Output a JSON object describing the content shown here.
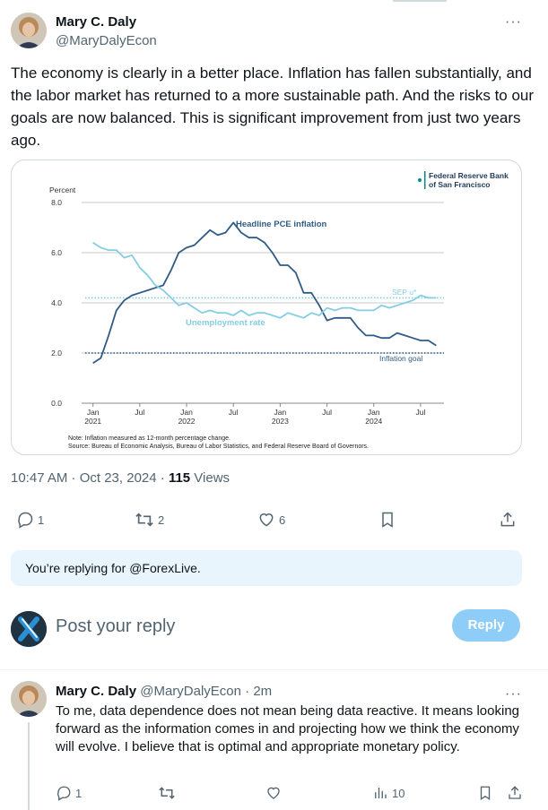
{
  "main_tweet": {
    "author_name": "Mary C. Daly",
    "author_handle": "@MaryDalyEcon",
    "text": "The economy is clearly in a better place. Inflation has fallen substantially, and the labor market has returned to a more sustainable path. And the risks to our goals are now balanced. This is significant improvement from just two years ago.",
    "time": "10:47 AM · Oct 23, 2024 · ",
    "views_count": "115",
    "views_label": " Views",
    "replies": "1",
    "reposts": "2",
    "likes": "6"
  },
  "chart_card": {
    "brand_line1": "Federal Reserve Bank",
    "brand_line2": "of San Francisco",
    "y_unit": "Percent",
    "note": "Note: Inflation measured as 12-month percentage change.",
    "source": "Source: Bureau of Economic Analysis, Bureau of Labor Statistics, and Federal Reserve Board of Governors."
  },
  "chart_data": {
    "type": "line",
    "ylim": [
      0,
      8
    ],
    "yticks": [
      "0.0",
      "2.0",
      "4.0",
      "6.0",
      "8.0"
    ],
    "xticks": [
      {
        "line1": "Jan",
        "line2": "2021",
        "t": 0
      },
      {
        "line1": "Jul",
        "line2": "",
        "t": 6
      },
      {
        "line1": "Jan",
        "line2": "2022",
        "t": 12
      },
      {
        "line1": "Jul",
        "line2": "",
        "t": 18
      },
      {
        "line1": "Jan",
        "line2": "2023",
        "t": 24
      },
      {
        "line1": "Jul",
        "line2": "",
        "t": 30
      },
      {
        "line1": "Jan",
        "line2": "2024",
        "t": 36
      },
      {
        "line1": "Jul",
        "line2": "",
        "t": 42
      }
    ],
    "xlim": [
      -1,
      45
    ],
    "series": [
      {
        "name": "Headline PCE inflation",
        "color": "#2f5c85",
        "values": [
          1.6,
          1.8,
          2.7,
          3.7,
          4.1,
          4.3,
          4.4,
          4.5,
          4.6,
          4.7,
          5.3,
          6.0,
          6.2,
          6.3,
          6.6,
          6.9,
          6.7,
          6.8,
          7.2,
          6.8,
          6.6,
          6.6,
          6.4,
          6.0,
          5.5,
          5.5,
          5.2,
          4.4,
          4.4,
          3.9,
          3.3,
          3.4,
          3.4,
          3.4,
          3.0,
          2.7,
          2.7,
          2.6,
          2.6,
          2.8,
          2.7,
          2.6,
          2.5,
          2.5,
          2.3
        ]
      },
      {
        "name": "Unemployment rate",
        "color": "#85cde3",
        "values": [
          6.4,
          6.2,
          6.1,
          6.1,
          5.8,
          5.9,
          5.4,
          5.1,
          4.7,
          4.5,
          4.2,
          3.9,
          4.0,
          3.8,
          3.6,
          3.7,
          3.6,
          3.6,
          3.5,
          3.7,
          3.5,
          3.6,
          3.6,
          3.5,
          3.4,
          3.6,
          3.5,
          3.4,
          3.6,
          3.5,
          3.8,
          3.7,
          3.8,
          3.8,
          3.7,
          3.7,
          3.7,
          3.9,
          3.8,
          3.9,
          4.0,
          4.1,
          4.3,
          4.2,
          4.2
        ]
      }
    ],
    "reference_lines": [
      {
        "name": "SEP u*",
        "value": 4.2,
        "color": "#85cde3"
      },
      {
        "name": "Inflation goal",
        "value": 2.0,
        "color": "#2f5c85"
      }
    ]
  },
  "reply_compose": {
    "replying_prefix": "You’re replying for ",
    "replying_handle": "@ForexLive.",
    "placeholder": "Post your reply",
    "button": "Reply"
  },
  "reply_tweet": {
    "author_name": "Mary C. Daly",
    "author_handle": "@MaryDalyEcon",
    "time": " · 2m",
    "text": "To me, data dependence does not mean being data reactive. It means looking forward as the information comes in and projecting how we think the economy will evolve. I believe that is optimal and appropriate monetary policy.",
    "replies": "1",
    "views": "10"
  }
}
